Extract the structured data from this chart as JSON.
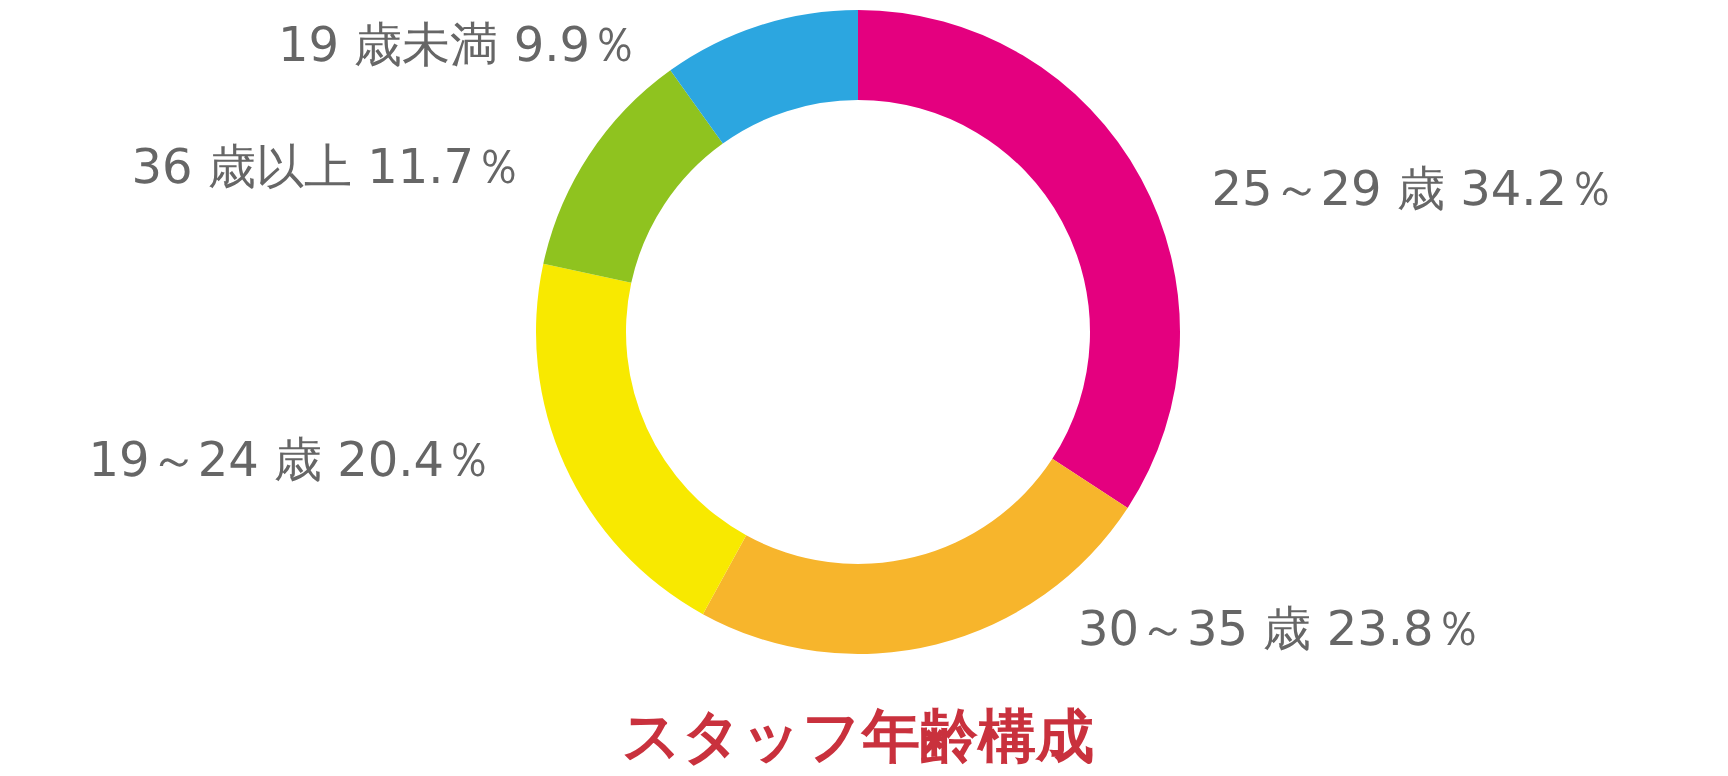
{
  "chart_data": {
    "type": "donut",
    "title": "スタッフ年齢構成",
    "categories": [
      "25～29 歳",
      "30～35 歳",
      "19～24 歳",
      "36 歳以上",
      "19 歳未満"
    ],
    "values": [
      34.2,
      23.8,
      20.4,
      11.7,
      9.9
    ],
    "value_labels": [
      "34.2％",
      "23.8％",
      "20.4％",
      "11.7％",
      "9.9％"
    ],
    "colors": [
      "#e4007f",
      "#f7b52c",
      "#f8e900",
      "#8fc31f",
      "#2ca6e0"
    ]
  }
}
